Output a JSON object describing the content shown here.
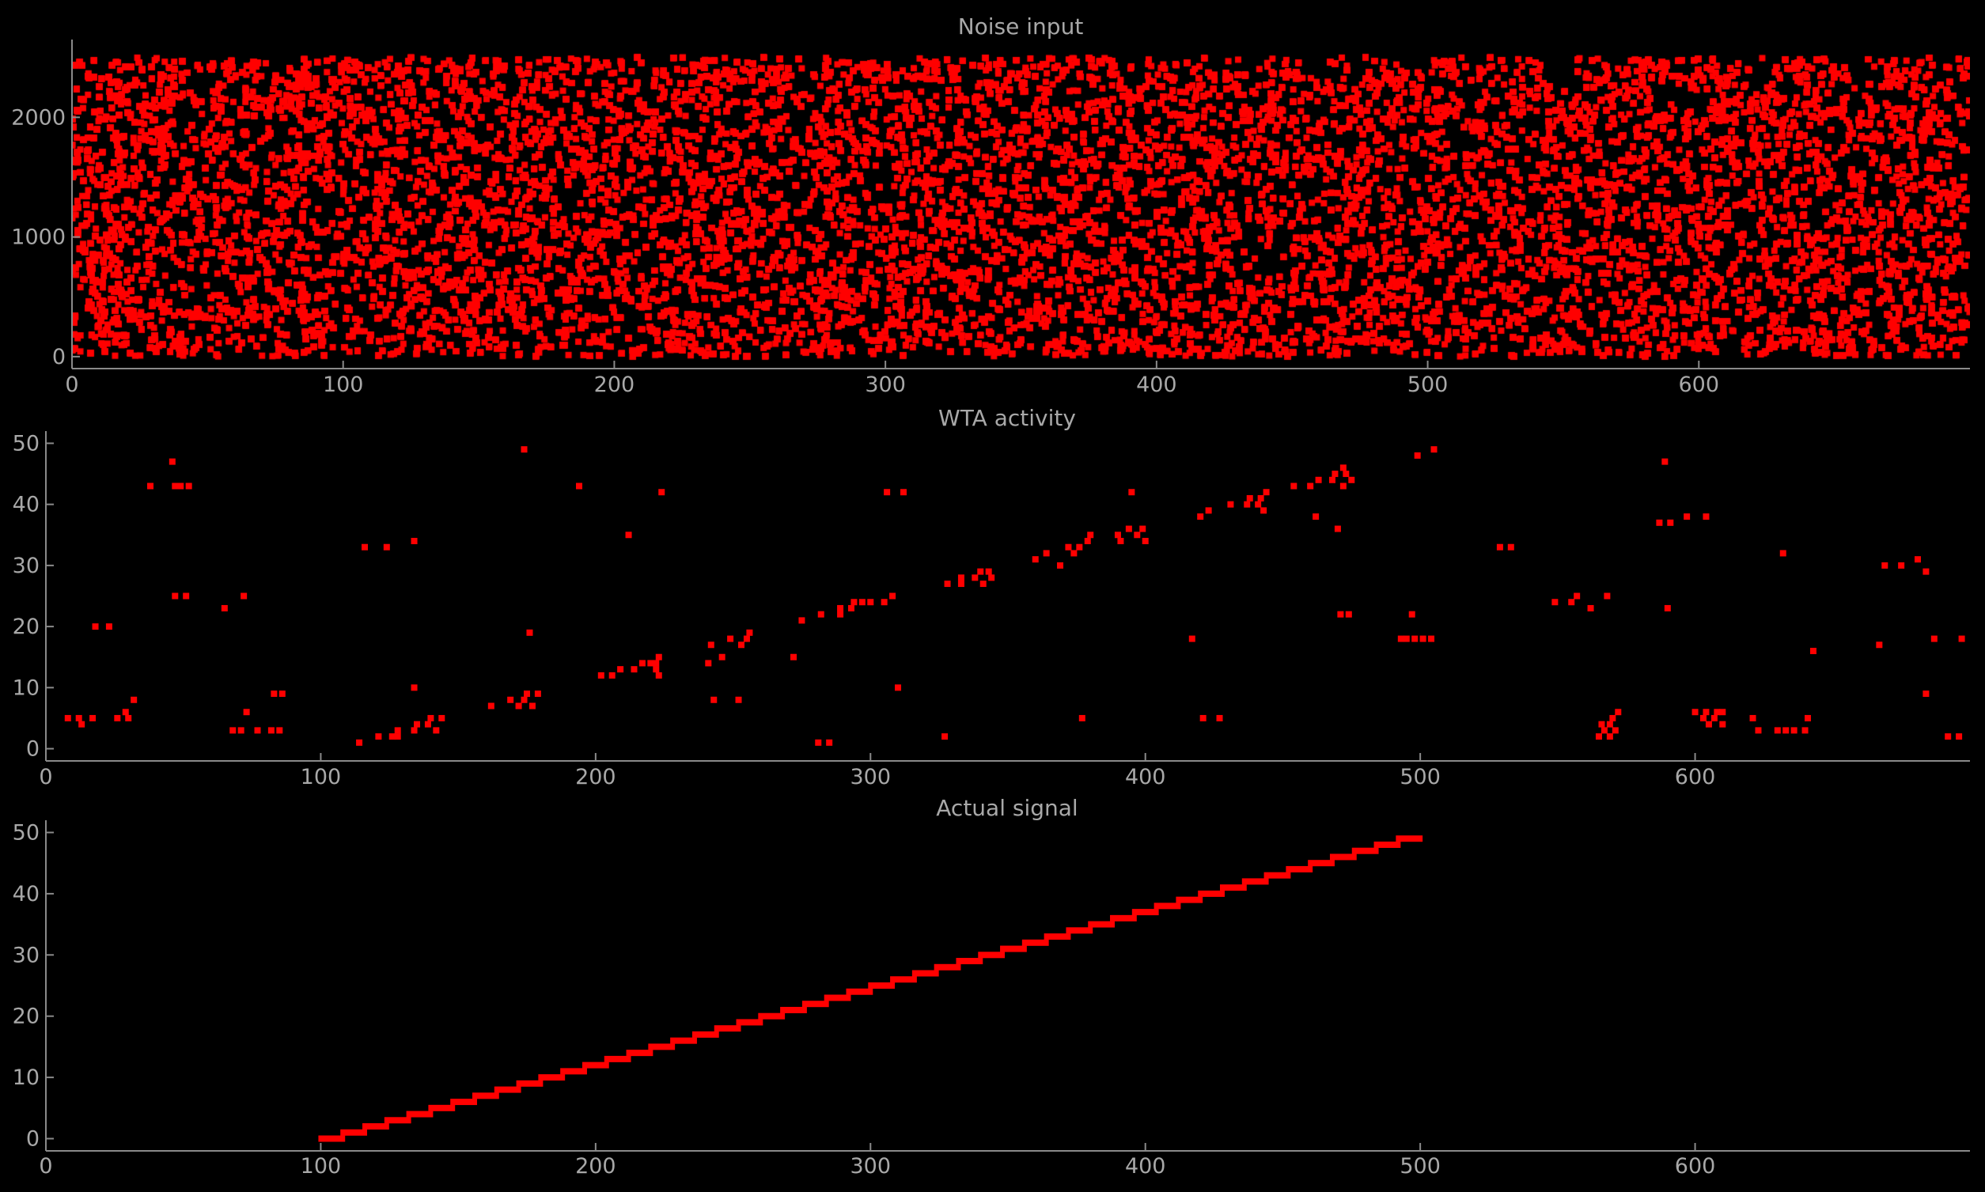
{
  "figure": {
    "background": "#000000",
    "marker_color": "#ff0000",
    "axis_color": "#8a8a8a",
    "text_color": "#a8a8a8"
  },
  "chart_data": [
    {
      "type": "scatter",
      "title": "Noise input",
      "xlabel": "",
      "ylabel": "",
      "xlim": [
        0,
        700
      ],
      "ylim": [
        -100,
        2650
      ],
      "xticks": [
        0,
        100,
        200,
        300,
        400,
        500,
        600
      ],
      "yticks": [
        0,
        1000,
        2000
      ],
      "grid": false,
      "point_sampling": {
        "x_range": [
          0,
          700
        ],
        "neuron_range": [
          0,
          2500
        ],
        "approx_points": 60000,
        "distribution": "uniform random raster (dense)"
      }
    },
    {
      "type": "scatter",
      "title": "WTA activity",
      "xlabel": "",
      "ylabel": "",
      "xlim": [
        0,
        700
      ],
      "ylim": [
        -2,
        52
      ],
      "xticks": [
        0,
        100,
        200,
        300,
        400,
        500,
        600
      ],
      "yticks": [
        0,
        10,
        20,
        30,
        40,
        50
      ],
      "grid": false,
      "points": [
        [
          8,
          5
        ],
        [
          12,
          5
        ],
        [
          13,
          4
        ],
        [
          17,
          5
        ],
        [
          18,
          20
        ],
        [
          23,
          20
        ],
        [
          26,
          5
        ],
        [
          29,
          6
        ],
        [
          30,
          5
        ],
        [
          32,
          8
        ],
        [
          38,
          43
        ],
        [
          46,
          47
        ],
        [
          47,
          43
        ],
        [
          47,
          25
        ],
        [
          49,
          43
        ],
        [
          51,
          25
        ],
        [
          52,
          43
        ],
        [
          65,
          23
        ],
        [
          68,
          3
        ],
        [
          71,
          3
        ],
        [
          72,
          25
        ],
        [
          73,
          6
        ],
        [
          77,
          3
        ],
        [
          82,
          3
        ],
        [
          83,
          9
        ],
        [
          85,
          3
        ],
        [
          86,
          9
        ],
        [
          114,
          1
        ],
        [
          116,
          33
        ],
        [
          121,
          2
        ],
        [
          124,
          33
        ],
        [
          126,
          2
        ],
        [
          128,
          3
        ],
        [
          128,
          2
        ],
        [
          134,
          3
        ],
        [
          134,
          34
        ],
        [
          134,
          10
        ],
        [
          135,
          4
        ],
        [
          139,
          4
        ],
        [
          140,
          5
        ],
        [
          142,
          3
        ],
        [
          144,
          5
        ],
        [
          162,
          7
        ],
        [
          169,
          8
        ],
        [
          172,
          7
        ],
        [
          174,
          49
        ],
        [
          174,
          8
        ],
        [
          175,
          9
        ],
        [
          176,
          19
        ],
        [
          177,
          7
        ],
        [
          179,
          9
        ],
        [
          194,
          43
        ],
        [
          202,
          12
        ],
        [
          206,
          12
        ],
        [
          209,
          13
        ],
        [
          212,
          35
        ],
        [
          214,
          13
        ],
        [
          217,
          14
        ],
        [
          220,
          14
        ],
        [
          222,
          13
        ],
        [
          222,
          14
        ],
        [
          223,
          15
        ],
        [
          223,
          12
        ],
        [
          224,
          42
        ],
        [
          241,
          14
        ],
        [
          242,
          17
        ],
        [
          243,
          8
        ],
        [
          246,
          15
        ],
        [
          249,
          18
        ],
        [
          252,
          8
        ],
        [
          253,
          17
        ],
        [
          255,
          18
        ],
        [
          256,
          19
        ],
        [
          272,
          15
        ],
        [
          275,
          21
        ],
        [
          281,
          1
        ],
        [
          282,
          22
        ],
        [
          285,
          1
        ],
        [
          289,
          22
        ],
        [
          289,
          23
        ],
        [
          293,
          23
        ],
        [
          294,
          24
        ],
        [
          297,
          24
        ],
        [
          300,
          24
        ],
        [
          305,
          24
        ],
        [
          306,
          42
        ],
        [
          308,
          25
        ],
        [
          310,
          10
        ],
        [
          312,
          42
        ],
        [
          327,
          2
        ],
        [
          328,
          27
        ],
        [
          333,
          27
        ],
        [
          333,
          28
        ],
        [
          338,
          28
        ],
        [
          340,
          29
        ],
        [
          341,
          27
        ],
        [
          343,
          29
        ],
        [
          344,
          28
        ],
        [
          360,
          31
        ],
        [
          364,
          32
        ],
        [
          369,
          30
        ],
        [
          372,
          33
        ],
        [
          374,
          32
        ],
        [
          376,
          33
        ],
        [
          377,
          5
        ],
        [
          379,
          34
        ],
        [
          380,
          35
        ],
        [
          390,
          35
        ],
        [
          391,
          34
        ],
        [
          394,
          36
        ],
        [
          395,
          42
        ],
        [
          397,
          35
        ],
        [
          399,
          36
        ],
        [
          400,
          34
        ],
        [
          417,
          18
        ],
        [
          420,
          38
        ],
        [
          421,
          5
        ],
        [
          423,
          39
        ],
        [
          427,
          5
        ],
        [
          431,
          40
        ],
        [
          437,
          40
        ],
        [
          438,
          41
        ],
        [
          441,
          40
        ],
        [
          442,
          41
        ],
        [
          443,
          39
        ],
        [
          444,
          42
        ],
        [
          454,
          43
        ],
        [
          460,
          43
        ],
        [
          462,
          38
        ],
        [
          463,
          44
        ],
        [
          468,
          44
        ],
        [
          469,
          45
        ],
        [
          470,
          36
        ],
        [
          471,
          22
        ],
        [
          472,
          43
        ],
        [
          472,
          46
        ],
        [
          473,
          45
        ],
        [
          474,
          22
        ],
        [
          475,
          44
        ],
        [
          493,
          18
        ],
        [
          495,
          18
        ],
        [
          497,
          22
        ],
        [
          498,
          18
        ],
        [
          499,
          48
        ],
        [
          501,
          18
        ],
        [
          504,
          18
        ],
        [
          505,
          49
        ],
        [
          529,
          33
        ],
        [
          533,
          33
        ],
        [
          549,
          24
        ],
        [
          555,
          24
        ],
        [
          557,
          25
        ],
        [
          562,
          23
        ],
        [
          565,
          2
        ],
        [
          566,
          4
        ],
        [
          567,
          3
        ],
        [
          568,
          25
        ],
        [
          569,
          2
        ],
        [
          569,
          4
        ],
        [
          570,
          5
        ],
        [
          571,
          3
        ],
        [
          572,
          6
        ],
        [
          587,
          37
        ],
        [
          589,
          47
        ],
        [
          590,
          23
        ],
        [
          591,
          37
        ],
        [
          597,
          38
        ],
        [
          600,
          6
        ],
        [
          603,
          5
        ],
        [
          604,
          38
        ],
        [
          604,
          6
        ],
        [
          605,
          4
        ],
        [
          607,
          5
        ],
        [
          608,
          6
        ],
        [
          610,
          4
        ],
        [
          610,
          6
        ],
        [
          621,
          5
        ],
        [
          623,
          3
        ],
        [
          630,
          3
        ],
        [
          632,
          32
        ],
        [
          633,
          3
        ],
        [
          636,
          3
        ],
        [
          640,
          3
        ],
        [
          641,
          5
        ],
        [
          643,
          16
        ],
        [
          667,
          17
        ],
        [
          669,
          30
        ],
        [
          675,
          30
        ],
        [
          681,
          31
        ],
        [
          684,
          29
        ],
        [
          684,
          9
        ],
        [
          687,
          18
        ],
        [
          692,
          2
        ],
        [
          696,
          2
        ],
        [
          697,
          18
        ]
      ]
    },
    {
      "type": "scatter",
      "title": "Actual signal",
      "xlabel": "",
      "ylabel": "",
      "xlim": [
        0,
        700
      ],
      "ylim": [
        -2,
        52
      ],
      "xticks": [
        0,
        100,
        200,
        300,
        400,
        500,
        600
      ],
      "yticks": [
        0,
        10,
        20,
        30,
        40,
        50
      ],
      "grid": false,
      "signal": {
        "description": "neuron index i active for x in [100 + 8*i, 100 + 8*i + 8)",
        "x_start": 100,
        "x_end": 500,
        "step_width": 8,
        "neuron_start": 0,
        "neuron_end": 49
      }
    }
  ]
}
